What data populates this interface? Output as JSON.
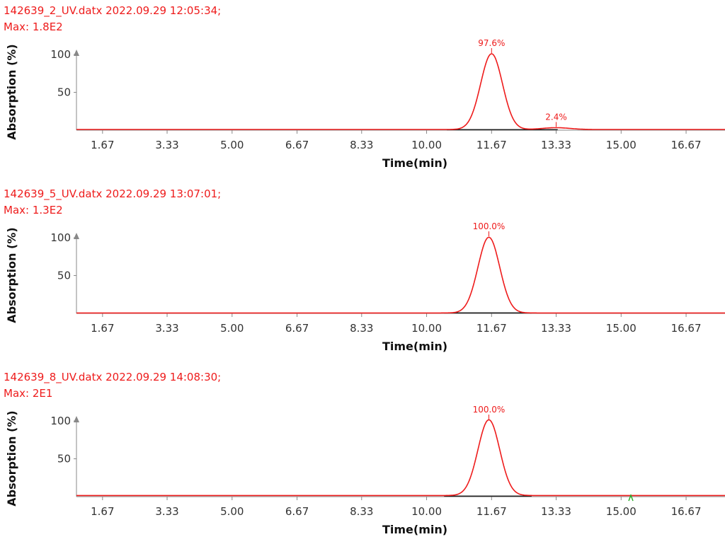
{
  "chart_data": [
    {
      "type": "line",
      "file": "142639_2_UV.datx",
      "datetime": "2022.09.29 12:05:34;",
      "max_label": "Max: 1.8E2",
      "xlabel": "Time(min)",
      "ylabel": "Absorption (%)",
      "x_ticks": [
        "1.67",
        "3.33",
        "5.00",
        "6.67",
        "8.33",
        "10.00",
        "11.67",
        "13.33",
        "15.00",
        "16.67"
      ],
      "y_ticks": [
        "100",
        "50"
      ],
      "xlim": [
        1.0,
        17.67
      ],
      "ylim": [
        0,
        100
      ],
      "peaks": [
        {
          "time": 11.67,
          "height": 100,
          "label": "97.6%"
        },
        {
          "time": 13.33,
          "height": 2.4,
          "label": "2.4%"
        }
      ],
      "baseline_level": 1.5,
      "colors": {
        "trace": "#ee1b1b",
        "baseline": "#222222",
        "axis": "#888888"
      }
    },
    {
      "type": "line",
      "file": "142639_5_UV.datx",
      "datetime": "2022.09.29 13:07:01;",
      "max_label": "Max: 1.3E2",
      "xlabel": "Time(min)",
      "ylabel": "Absorption (%)",
      "x_ticks": [
        "1.67",
        "3.33",
        "5.00",
        "6.67",
        "8.33",
        "10.00",
        "11.67",
        "13.33",
        "15.00",
        "16.67"
      ],
      "y_ticks": [
        "100",
        "50"
      ],
      "xlim": [
        1.0,
        17.67
      ],
      "ylim": [
        0,
        100
      ],
      "peaks": [
        {
          "time": 11.6,
          "height": 100,
          "label": "100.0%"
        }
      ],
      "baseline_level": 1.0,
      "colors": {
        "trace": "#ee1b1b",
        "baseline": "#222222",
        "axis": "#888888"
      }
    },
    {
      "type": "line",
      "file": "142639_8_UV.datx",
      "datetime": "2022.09.29 14:08:30;",
      "max_label": "Max: 2E1",
      "xlabel": "Time(min)",
      "ylabel": "Absorption (%)",
      "x_ticks": [
        "1.67",
        "3.33",
        "5.00",
        "6.67",
        "8.33",
        "10.00",
        "11.67",
        "13.33",
        "15.00",
        "16.67"
      ],
      "y_ticks": [
        "100",
        "50"
      ],
      "xlim": [
        1.0,
        17.67
      ],
      "ylim": [
        0,
        100
      ],
      "peaks": [
        {
          "time": 11.6,
          "height": 100,
          "label": "100.0%"
        }
      ],
      "baseline_level": 2.5,
      "marker_time": 15.25,
      "colors": {
        "trace": "#ee1b1b",
        "baseline": "#222222",
        "axis": "#888888",
        "marker": "#22aa22"
      }
    }
  ]
}
